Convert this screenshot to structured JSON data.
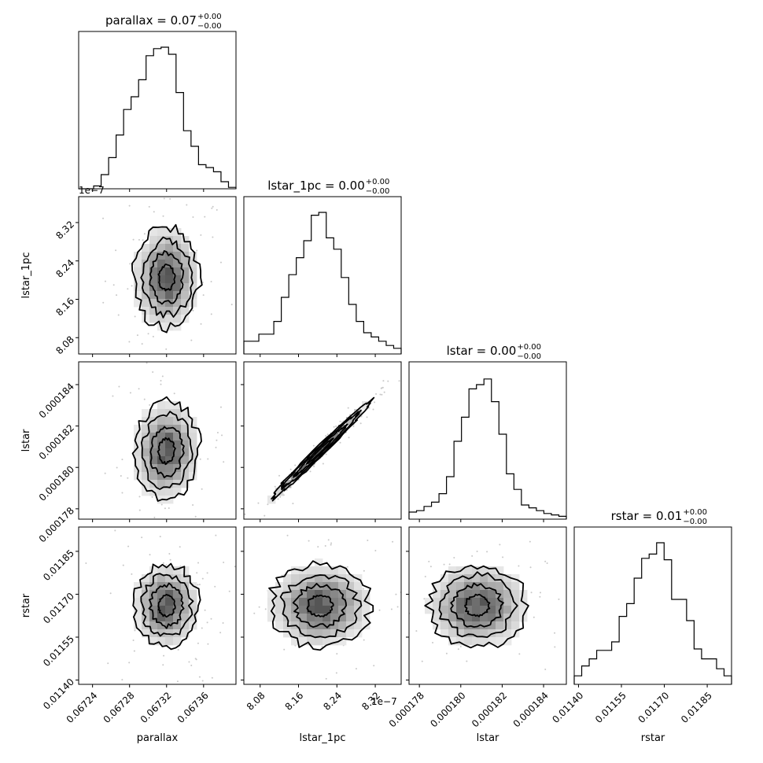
{
  "chart_data": {
    "type": "corner",
    "parameters": [
      "parallax",
      "lstar_1pc",
      "lstar",
      "rstar"
    ],
    "axis_labels": [
      "parallax",
      "lstar_1pc",
      "lstar",
      "rstar"
    ],
    "titles": [
      {
        "param": "parallax",
        "text": "parallax = 0.07",
        "sup": "+0.00",
        "sub": "−0.00"
      },
      {
        "param": "lstar_1pc",
        "text": "lstar_1pc = 0.00",
        "sup": "+0.00",
        "sub": "−0.00"
      },
      {
        "param": "lstar",
        "text": "lstar = 0.00",
        "sup": "+0.00",
        "sub": "−0.00"
      },
      {
        "param": "rstar",
        "text": "rstar = 0.01",
        "sup": "+0.00",
        "sub": "−0.00"
      }
    ],
    "ranges": [
      [
        0.067225,
        0.067395
      ],
      [
        8.046e-07,
        8.374e-07
      ],
      [
        0.0001775,
        0.0001851
      ],
      [
        0.011385,
        0.011935
      ]
    ],
    "ticks": [
      {
        "values": [
          0.06724,
          0.06728,
          0.06732,
          0.06736
        ],
        "labels": [
          "0.06724",
          "0.06728",
          "0.06732",
          "0.06736"
        ]
      },
      {
        "values": [
          8.08e-07,
          8.16e-07,
          8.24e-07,
          8.32e-07
        ],
        "labels": [
          "8.08",
          "8.16",
          "8.24",
          "8.32"
        ],
        "offset": "1e−7"
      },
      {
        "values": [
          0.000178,
          0.00018,
          0.000182,
          0.000184
        ],
        "labels": [
          "0.000178",
          "0.000180",
          "0.000182",
          "0.000184"
        ]
      },
      {
        "values": [
          0.0114,
          0.01155,
          0.0117,
          0.01185
        ],
        "labels": [
          "0.01140",
          "0.01155",
          "0.01170",
          "0.01185"
        ]
      }
    ],
    "histograms": [
      [
        0,
        0,
        0.02,
        0.1,
        0.22,
        0.38,
        0.56,
        0.65,
        0.77,
        0.94,
        0.99,
        1.0,
        0.95,
        0.68,
        0.41,
        0.3,
        0.17,
        0.15,
        0.12,
        0.05,
        0.01
      ],
      [
        0.09,
        0.09,
        0.14,
        0.14,
        0.23,
        0.4,
        0.56,
        0.68,
        0.8,
        0.98,
        1.0,
        0.82,
        0.74,
        0.54,
        0.35,
        0.23,
        0.15,
        0.12,
        0.09,
        0.06,
        0.04
      ],
      [
        0.05,
        0.06,
        0.09,
        0.12,
        0.18,
        0.3,
        0.55,
        0.72,
        0.92,
        0.95,
        0.99,
        0.83,
        0.6,
        0.32,
        0.21,
        0.1,
        0.08,
        0.06,
        0.04,
        0.03,
        0.02
      ],
      [
        0.06,
        0.13,
        0.18,
        0.24,
        0.24,
        0.3,
        0.48,
        0.57,
        0.75,
        0.89,
        0.92,
        1.0,
        0.88,
        0.6,
        0.6,
        0.45,
        0.25,
        0.18,
        0.18,
        0.11,
        0.06
      ]
    ],
    "pairs": [
      {
        "x": "parallax",
        "y": "lstar_1pc",
        "mean": [
          0.06732,
          8.205e-07
        ],
        "sigma": [
          1.75e-05,
          5.2e-09
        ],
        "rho": 0.0
      },
      {
        "x": "parallax",
        "y": "lstar",
        "mean": [
          0.06732,
          0.0001808
        ],
        "sigma": [
          1.75e-05,
          1.18e-06
        ],
        "rho": 0.05
      },
      {
        "x": "lstar_1pc",
        "y": "lstar",
        "mean": [
          8.205e-07,
          0.0001808
        ],
        "sigma": [
          5.2e-09,
          1.18e-06
        ],
        "rho": 0.99
      },
      {
        "x": "parallax",
        "y": "rstar",
        "mean": [
          0.06732,
          0.01166
        ],
        "sigma": [
          1.75e-05,
          7.2e-05
        ],
        "rho": 0.0
      },
      {
        "x": "lstar_1pc",
        "y": "rstar",
        "mean": [
          8.205e-07,
          0.01166
        ],
        "sigma": [
          5.2e-09,
          7.2e-05
        ],
        "rho": 0.0
      },
      {
        "x": "lstar",
        "y": "rstar",
        "mean": [
          0.0001808,
          0.01166
        ],
        "sigma": [
          1.18e-06,
          7.2e-05
        ],
        "rho": 0.0
      }
    ]
  }
}
